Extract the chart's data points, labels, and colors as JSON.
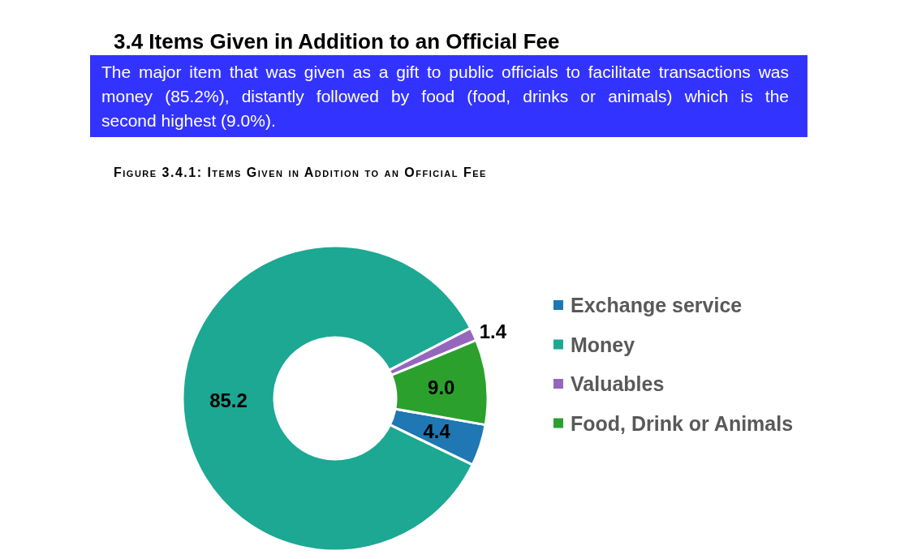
{
  "chart_data": {
    "type": "donut",
    "title": "3.4 Items Given in Addition to an Official Fee",
    "subtitle": "The major item that was given as a gift to public officials to facilitate transactions was money (85.2%), distantly followed by food (food, drinks or animals) which is the second highest (9.0%).",
    "annotations": [
      "Figure 3.4.1: Items Given in Addition to an Official Fee"
    ],
    "categories": [
      "Exchange service",
      "Money",
      "Valuables",
      "Food, Drink or Animals"
    ],
    "values": [
      4.4,
      85.2,
      1.4,
      9.0
    ],
    "value_labels": [
      "4.4",
      "85.2",
      "1.4",
      "9.0"
    ],
    "colors": [
      "#1f77b4",
      "#1ca893",
      "#9467bd",
      "#2ca02c"
    ],
    "legend": "right"
  }
}
